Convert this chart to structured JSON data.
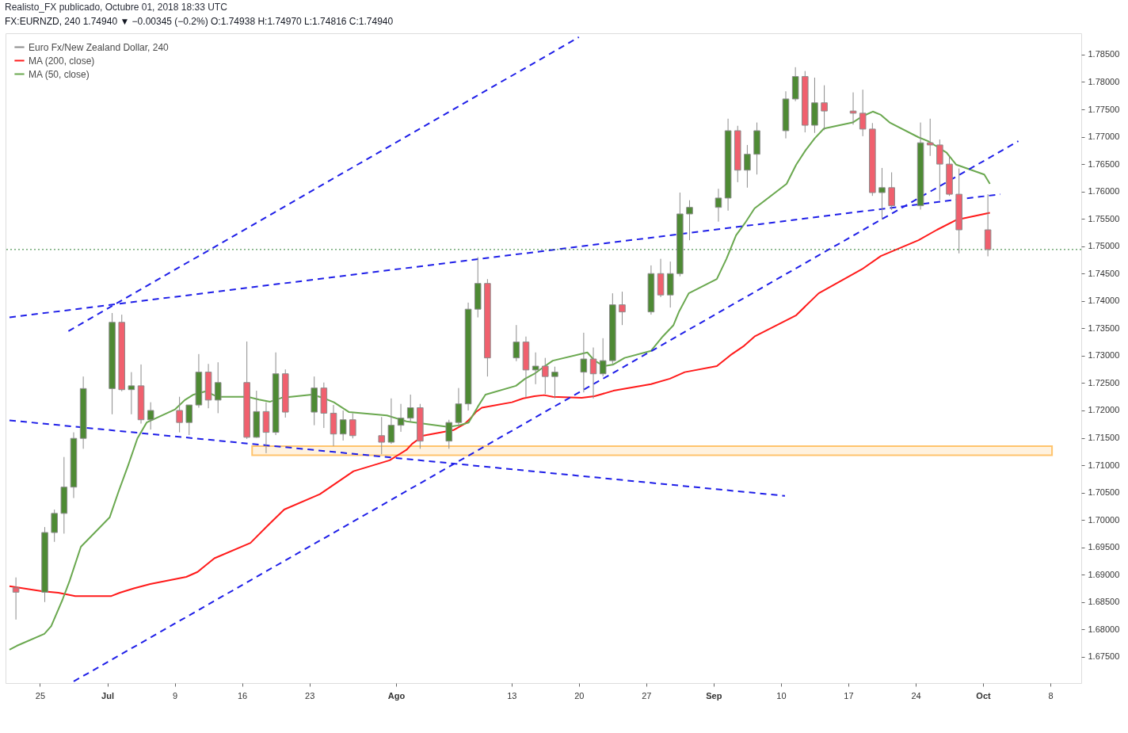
{
  "chart_data": {
    "type": "candlestick",
    "title": "Realisto_FX publicado, Octubre 01, 2018 18:33 UTC",
    "subtitle": "FX:EURNZD, 240  1.74940 ▼ −0.00345 (−0.2%)  O:1.74938  H:1.74970  L:1.74816  C:1.74940",
    "legend": "top left",
    "xlim": [
      "2018-06-21T20:00",
      "2018-10-10T19:00"
    ],
    "ylim": [
      1.6702,
      1.7889
    ],
    "xticks": [
      {
        "value": "2018-06-25",
        "label": "25"
      },
      {
        "value": "2018-07-02",
        "label": "Jul"
      },
      {
        "value": "2018-07-09",
        "label": "9"
      },
      {
        "value": "2018-07-16",
        "label": "16"
      },
      {
        "value": "2018-07-23",
        "label": "23"
      },
      {
        "value": "2018-08-01",
        "label": "Ago"
      },
      {
        "value": "2018-08-13",
        "label": "13"
      },
      {
        "value": "2018-08-20",
        "label": "20"
      },
      {
        "value": "2018-08-27",
        "label": "27"
      },
      {
        "value": "2018-09-03",
        "label": "Sep"
      },
      {
        "value": "2018-09-10",
        "label": "10"
      },
      {
        "value": "2018-09-17",
        "label": "17"
      },
      {
        "value": "2018-09-24",
        "label": "24"
      },
      {
        "value": "2018-10-01",
        "label": "Oct"
      },
      {
        "value": "2018-10-08",
        "label": "8"
      }
    ],
    "yticks": [
      {
        "value": 1.675,
        "label": "1.67500"
      },
      {
        "value": 1.68,
        "label": "1.68000"
      },
      {
        "value": 1.685,
        "label": "1.68500"
      },
      {
        "value": 1.69,
        "label": "1.69000"
      },
      {
        "value": 1.695,
        "label": "1.69500"
      },
      {
        "value": 1.7,
        "label": "1.70000"
      },
      {
        "value": 1.705,
        "label": "1.70500"
      },
      {
        "value": 1.71,
        "label": "1.71000"
      },
      {
        "value": 1.715,
        "label": "1.71500"
      },
      {
        "value": 1.72,
        "label": "1.72000"
      },
      {
        "value": 1.725,
        "label": "1.72500"
      },
      {
        "value": 1.73,
        "label": "1.73000"
      },
      {
        "value": 1.735,
        "label": "1.73500"
      },
      {
        "value": 1.74,
        "label": "1.74000"
      },
      {
        "value": 1.745,
        "label": "1.74500"
      },
      {
        "value": 1.75,
        "label": "1.75000"
      },
      {
        "value": 1.755,
        "label": "1.75500"
      },
      {
        "value": 1.76,
        "label": "1.76000"
      },
      {
        "value": 1.765,
        "label": "1.76500"
      },
      {
        "value": 1.77,
        "label": "1.77000"
      },
      {
        "value": 1.775,
        "label": "1.77500"
      },
      {
        "value": 1.78,
        "label": "1.78000"
      },
      {
        "value": 1.785,
        "label": "1.78500"
      }
    ],
    "ref_lines": [
      {
        "axis": "y",
        "value": 1.7494,
        "color": "#2e7d32",
        "line_style": "dotted"
      }
    ],
    "series": [
      {
        "name": "Euro Fx/New Zealand Dollar, 240",
        "color": "#8c8c8c",
        "x": [
          "2018-06-22T12:00",
          "2018-06-25T12:00",
          "2018-06-26T12:00",
          "2018-06-27T12:00",
          "2018-06-28T12:00",
          "2018-06-29T12:00",
          "2018-07-02T12:00",
          "2018-07-03T12:00",
          "2018-07-04T12:00",
          "2018-07-05T12:00",
          "2018-07-06T12:00",
          "2018-07-09T12:00",
          "2018-07-10T12:00",
          "2018-07-11T12:00",
          "2018-07-12T12:00",
          "2018-07-13T12:00",
          "2018-07-16T12:00",
          "2018-07-17T12:00",
          "2018-07-18T12:00",
          "2018-07-19T12:00",
          "2018-07-20T12:00",
          "2018-07-23T12:00",
          "2018-07-24T12:00",
          "2018-07-25T12:00",
          "2018-07-26T12:00",
          "2018-07-27T12:00",
          "2018-07-30T12:00",
          "2018-07-31T12:00",
          "2018-08-01T12:00",
          "2018-08-02T12:00",
          "2018-08-03T12:00",
          "2018-08-06T12:00",
          "2018-08-07T12:00",
          "2018-08-08T12:00",
          "2018-08-09T12:00",
          "2018-08-10T12:00",
          "2018-08-13T12:00",
          "2018-08-14T12:00",
          "2018-08-15T12:00",
          "2018-08-16T12:00",
          "2018-08-17T12:00",
          "2018-08-20T12:00",
          "2018-08-21T12:00",
          "2018-08-22T12:00",
          "2018-08-23T12:00",
          "2018-08-24T12:00",
          "2018-08-27T12:00",
          "2018-08-28T12:00",
          "2018-08-29T12:00",
          "2018-08-30T12:00",
          "2018-08-31T12:00",
          "2018-09-03T12:00",
          "2018-09-04T12:00",
          "2018-09-05T12:00",
          "2018-09-06T12:00",
          "2018-09-07T12:00",
          "2018-09-10T12:00",
          "2018-09-11T12:00",
          "2018-09-12T12:00",
          "2018-09-13T12:00",
          "2018-09-14T12:00",
          "2018-09-17T12:00",
          "2018-09-18T12:00",
          "2018-09-19T12:00",
          "2018-09-20T12:00",
          "2018-09-21T12:00",
          "2018-09-24T12:00",
          "2018-09-25T12:00",
          "2018-09-26T12:00",
          "2018-09-27T12:00",
          "2018-09-28T12:00",
          "2018-10-01T12:00"
        ],
        "ohlc": [
          [
            1.6876,
            1.6895,
            1.6818,
            1.6868
          ],
          [
            1.6868,
            1.6987,
            1.685,
            1.6977
          ],
          [
            1.6977,
            1.7019,
            1.696,
            1.7012
          ],
          [
            1.7012,
            1.7115,
            1.6975,
            1.706
          ],
          [
            1.706,
            1.716,
            1.704,
            1.7149
          ],
          [
            1.7149,
            1.7262,
            1.713,
            1.724
          ],
          [
            1.724,
            1.7378,
            1.7193,
            1.7361
          ],
          [
            1.7361,
            1.7375,
            1.7235,
            1.7238
          ],
          [
            1.7238,
            1.727,
            1.7193,
            1.7245
          ],
          [
            1.7245,
            1.7284,
            1.7176,
            1.7183
          ],
          [
            1.7183,
            1.7215,
            1.7165,
            1.72
          ],
          [
            1.72,
            1.7225,
            1.716,
            1.7178
          ],
          [
            1.7178,
            1.721,
            1.7155,
            1.721
          ],
          [
            1.721,
            1.7303,
            1.7205,
            1.727
          ],
          [
            1.727,
            1.7285,
            1.7204,
            1.7219
          ],
          [
            1.7219,
            1.7288,
            1.7195,
            1.7251
          ],
          [
            1.7251,
            1.7326,
            1.7148,
            1.7151
          ],
          [
            1.7151,
            1.7236,
            1.715,
            1.7198
          ],
          [
            1.7198,
            1.7215,
            1.7122,
            1.716
          ],
          [
            1.716,
            1.7306,
            1.7155,
            1.7267
          ],
          [
            1.7267,
            1.7275,
            1.7187,
            1.7197
          ],
          [
            1.7197,
            1.7262,
            1.7173,
            1.7241
          ],
          [
            1.7241,
            1.7251,
            1.7168,
            1.7195
          ],
          [
            1.7195,
            1.721,
            1.7135,
            1.7157
          ],
          [
            1.7157,
            1.72,
            1.7145,
            1.7183
          ],
          [
            1.7183,
            1.7195,
            1.7149,
            1.7154
          ],
          [
            1.7154,
            1.7188,
            1.712,
            1.7142
          ],
          [
            1.7142,
            1.7222,
            1.7139,
            1.7173
          ],
          [
            1.7173,
            1.7212,
            1.7161,
            1.7186
          ],
          [
            1.7186,
            1.7229,
            1.718,
            1.7205
          ],
          [
            1.7205,
            1.7212,
            1.713,
            1.7144
          ],
          [
            1.7144,
            1.7183,
            1.713,
            1.7178
          ],
          [
            1.7178,
            1.7241,
            1.717,
            1.7212
          ],
          [
            1.7212,
            1.7397,
            1.72,
            1.7385
          ],
          [
            1.7385,
            1.748,
            1.737,
            1.7432
          ],
          [
            1.7432,
            1.744,
            1.7262,
            1.7296
          ],
          [
            1.7296,
            1.7356,
            1.729,
            1.7325
          ],
          [
            1.7325,
            1.7335,
            1.7223,
            1.7274
          ],
          [
            1.7274,
            1.7306,
            1.7248,
            1.7281
          ],
          [
            1.7281,
            1.7296,
            1.723,
            1.7262
          ],
          [
            1.7262,
            1.728,
            1.7222,
            1.727
          ],
          [
            1.727,
            1.7342,
            1.7233,
            1.7294
          ],
          [
            1.7294,
            1.7315,
            1.7222,
            1.7267
          ],
          [
            1.7267,
            1.7332,
            1.7262,
            1.7291
          ],
          [
            1.7291,
            1.7414,
            1.7285,
            1.7393
          ],
          [
            1.7393,
            1.7417,
            1.7356,
            1.738
          ],
          [
            1.738,
            1.7465,
            1.7375,
            1.745
          ],
          [
            1.745,
            1.7477,
            1.7407,
            1.7411
          ],
          [
            1.7411,
            1.7472,
            1.7388,
            1.745
          ],
          [
            1.745,
            1.7598,
            1.7445,
            1.7559
          ],
          [
            1.7559,
            1.7584,
            1.7511,
            1.7571
          ],
          [
            1.7571,
            1.7605,
            1.7545,
            1.7588
          ],
          [
            1.7588,
            1.7733,
            1.7565,
            1.7711
          ],
          [
            1.7711,
            1.772,
            1.7617,
            1.7639
          ],
          [
            1.7639,
            1.7685,
            1.7607,
            1.7668
          ],
          [
            1.7668,
            1.7726,
            1.7631,
            1.7711
          ],
          [
            1.7711,
            1.7783,
            1.7697,
            1.7769
          ],
          [
            1.7769,
            1.7827,
            1.7765,
            1.781
          ],
          [
            1.781,
            1.782,
            1.7708,
            1.7721
          ],
          [
            1.7721,
            1.7808,
            1.7707,
            1.7762
          ],
          [
            1.7762,
            1.7794,
            1.7712,
            1.7747
          ],
          [
            1.7747,
            1.7781,
            1.7722,
            1.7743
          ],
          [
            1.7743,
            1.7786,
            1.7701,
            1.7714
          ],
          [
            1.7714,
            1.7725,
            1.7592,
            1.7598
          ],
          [
            1.7598,
            1.7643,
            1.7549,
            1.7607
          ],
          [
            1.7607,
            1.7635,
            1.7566,
            1.7574
          ],
          [
            1.7574,
            1.7726,
            1.7567,
            1.7689
          ],
          [
            1.7689,
            1.7733,
            1.7665,
            1.7685
          ],
          [
            1.7685,
            1.7695,
            1.7584,
            1.765
          ],
          [
            1.765,
            1.7664,
            1.7592,
            1.7595
          ],
          [
            1.7595,
            1.7642,
            1.7487,
            1.753
          ],
          [
            1.753,
            1.7595,
            1.74816,
            1.7494
          ]
        ],
        "colors": [
          "#f0606e",
          "#4e8a34",
          "#4e8a34",
          "#4e8a34",
          "#4e8a34",
          "#4e8a34",
          "#4e8a34",
          "#f0606e",
          "#4e8a34",
          "#f0606e",
          "#4e8a34",
          "#f0606e",
          "#4e8a34",
          "#4e8a34",
          "#f0606e",
          "#4e8a34",
          "#f0606e",
          "#4e8a34",
          "#f0606e",
          "#4e8a34",
          "#f0606e",
          "#4e8a34",
          "#f0606e",
          "#f0606e",
          "#4e8a34",
          "#f0606e",
          "#f0606e",
          "#4e8a34",
          "#4e8a34",
          "#4e8a34",
          "#f0606e",
          "#4e8a34",
          "#4e8a34",
          "#4e8a34",
          "#4e8a34",
          "#f0606e",
          "#4e8a34",
          "#f0606e",
          "#4e8a34",
          "#f0606e",
          "#4e8a34",
          "#4e8a34",
          "#f0606e",
          "#4e8a34",
          "#4e8a34",
          "#f0606e",
          "#4e8a34",
          "#f0606e",
          "#4e8a34",
          "#4e8a34",
          "#4e8a34",
          "#4e8a34",
          "#4e8a34",
          "#f0606e",
          "#4e8a34",
          "#4e8a34",
          "#4e8a34",
          "#4e8a34",
          "#f0606e",
          "#4e8a34",
          "#f0606e",
          "#f0606e",
          "#f0606e",
          "#f0606e",
          "#4e8a34",
          "#f0606e",
          "#4e8a34",
          "#f0606e",
          "#f0606e",
          "#f0606e",
          "#f0606e",
          "#f0606e"
        ]
      },
      {
        "type": "line",
        "name": "MA (200, close)",
        "color": "#ff1a1a",
        "x": [
          "2018-06-21T20:00",
          "2018-06-25T04:00",
          "2018-06-26T22:00",
          "2018-06-28T16:00",
          "2018-07-02T10:00",
          "2018-07-03T07:00",
          "2018-07-04T18:00",
          "2018-07-06T11:00",
          "2018-07-10T05:00",
          "2018-07-11T09:00",
          "2018-07-13T03:00",
          "2018-07-16T21:00",
          "2018-07-18T15:00",
          "2018-07-20T09:00",
          "2018-07-24T02:00",
          "2018-07-25T20:00",
          "2018-07-27T14:00",
          "2018-07-31T08:00",
          "2018-08-02T02:00",
          "2018-08-02T16:00",
          "2018-08-03T20:00",
          "2018-08-06T23:00",
          "2018-08-08T04:00",
          "2018-08-08T18:00",
          "2018-08-09T07:00",
          "2018-08-09T22:00",
          "2018-08-13T01:00",
          "2018-08-14T05:00",
          "2018-08-15T09:00",
          "2018-08-16T09:00",
          "2018-08-17T07:00",
          "2018-08-20T07:00",
          "2018-08-21T15:00",
          "2018-08-23T14:00",
          "2018-08-27T12:00",
          "2018-08-29T11:00",
          "2018-08-31T00:00",
          "2018-09-03T08:00",
          "2018-09-04T18:00",
          "2018-09-06T02:00",
          "2018-09-07T06:00",
          "2018-09-11T14:00",
          "2018-09-13T22:00",
          "2018-09-18T10:00",
          "2018-09-20T09:00",
          "2018-09-24T07:00",
          "2018-09-26T05:00",
          "2018-09-28T05:00",
          "2018-10-01T17:00"
        ],
        "values": [
          1.6879,
          1.687,
          1.6867,
          1.6861,
          1.6861,
          1.6867,
          1.6875,
          1.6883,
          1.6896,
          1.6905,
          1.693,
          1.6958,
          1.6989,
          1.7019,
          1.7047,
          1.7068,
          1.7089,
          1.7109,
          1.7128,
          1.7139,
          1.7154,
          1.7164,
          1.7176,
          1.7186,
          1.7197,
          1.7205,
          1.7215,
          1.7222,
          1.7226,
          1.7228,
          1.7225,
          1.7223,
          1.7226,
          1.7236,
          1.7248,
          1.7258,
          1.727,
          1.7281,
          1.7301,
          1.7317,
          1.7335,
          1.7374,
          1.7414,
          1.7458,
          1.7482,
          1.7511,
          1.753,
          1.7548,
          1.7561
        ]
      },
      {
        "type": "line",
        "name": "MA (50, close)",
        "color": "#6aa84f",
        "x": [
          "2018-06-21T20:00",
          "2018-06-22T14:00",
          "2018-06-25T11:00",
          "2018-06-26T04:00",
          "2018-06-27T08:00",
          "2018-06-28T02:00",
          "2018-06-29T06:00",
          "2018-07-02T06:00",
          "2018-07-03T04:00",
          "2018-07-04T04:00",
          "2018-07-05T03:00",
          "2018-07-06T02:00",
          "2018-07-09T01:00",
          "2018-07-10T01:00",
          "2018-07-10T23:00",
          "2018-07-12T06:00",
          "2018-07-13T10:00",
          "2018-07-16T14:00",
          "2018-07-17T18:00",
          "2018-07-18T22:00",
          "2018-07-20T02:00",
          "2018-07-23T06:00",
          "2018-07-24T10:00",
          "2018-07-25T13:00",
          "2018-07-27T03:00",
          "2018-07-31T01:00",
          "2018-08-02T02:00",
          "2018-08-06T10:00",
          "2018-08-07T14:00",
          "2018-08-08T13:00",
          "2018-08-09T12:00",
          "2018-08-10T07:00",
          "2018-08-13T11:00",
          "2018-08-14T10:00",
          "2018-08-15T09:00",
          "2018-08-16T09:00",
          "2018-08-17T07:00",
          "2018-08-20T21:00",
          "2018-08-21T15:00",
          "2018-08-22T15:00",
          "2018-08-23T14:00",
          "2018-08-24T18:00",
          "2018-08-27T12:00",
          "2018-08-28T17:00",
          "2018-08-29T20:00",
          "2018-08-30T10:00",
          "2018-08-31T10:00",
          "2018-09-03T08:00",
          "2018-09-04T08:00",
          "2018-09-05T08:00",
          "2018-09-06T06:00",
          "2018-09-07T06:00",
          "2018-09-10T14:00",
          "2018-09-11T14:00",
          "2018-09-12T13:00",
          "2018-09-13T12:00",
          "2018-09-14T11:00",
          "2018-09-17T11:00",
          "2018-09-18T10:00",
          "2018-09-19T13:00",
          "2018-09-20T09:00",
          "2018-09-21T07:00",
          "2018-09-24T07:00",
          "2018-09-25T07:00",
          "2018-09-26T05:00",
          "2018-09-27T05:00",
          "2018-09-28T05:00",
          "2018-10-01T03:00",
          "2018-10-01T17:00"
        ],
        "values": [
          1.6763,
          1.677,
          1.6792,
          1.6806,
          1.6854,
          1.6889,
          1.6951,
          1.7005,
          1.7052,
          1.71,
          1.7149,
          1.7178,
          1.7202,
          1.7219,
          1.7229,
          1.7235,
          1.7225,
          1.7225,
          1.722,
          1.7216,
          1.7223,
          1.7229,
          1.7223,
          1.7215,
          1.7197,
          1.7191,
          1.718,
          1.717,
          1.7173,
          1.7178,
          1.7207,
          1.7229,
          1.7245,
          1.7258,
          1.7267,
          1.728,
          1.7291,
          1.7306,
          1.7291,
          1.7281,
          1.7284,
          1.7296,
          1.7309,
          1.7335,
          1.7356,
          1.7381,
          1.7414,
          1.744,
          1.7477,
          1.752,
          1.7542,
          1.7569,
          1.7614,
          1.7649,
          1.7675,
          1.7697,
          1.7715,
          1.7726,
          1.7737,
          1.7746,
          1.774,
          1.7726,
          1.7699,
          1.7692,
          1.7682,
          1.7671,
          1.7649,
          1.7631,
          1.7614
        ]
      },
      {
        "type": "line",
        "color": "#1f1fe8",
        "line_style": "dashed",
        "x": [
          "2018-06-27T23:00",
          "2018-08-20T00:00"
        ],
        "values": [
          1.7345,
          1.7882
        ]
      },
      {
        "type": "line",
        "color": "#1f1fe8",
        "line_style": "dashed",
        "x": [
          "2018-06-28T12:00",
          "2018-10-04T16:00"
        ],
        "values": [
          1.6705,
          1.7692
        ]
      },
      {
        "type": "line",
        "color": "#1f1fe8",
        "line_style": "dashed",
        "x": [
          "2018-06-21T20:00",
          "2018-10-02T19:00"
        ],
        "values": [
          1.737,
          1.7595
        ]
      },
      {
        "type": "line",
        "color": "#1f1fe8",
        "line_style": "dashed",
        "x": [
          "2018-06-21T20:00",
          "2018-09-10T10:00"
        ],
        "values": [
          1.7182,
          1.7044
        ]
      },
      {
        "type": "area",
        "color": "#ffa726",
        "x": [
          "2018-07-17T01:00",
          "2018-10-08T04:00"
        ],
        "values": [
          null,
          null
        ],
        "upper": [
          1.7135,
          1.7135
        ],
        "lower": [
          1.7118,
          1.7118
        ]
      }
    ]
  }
}
